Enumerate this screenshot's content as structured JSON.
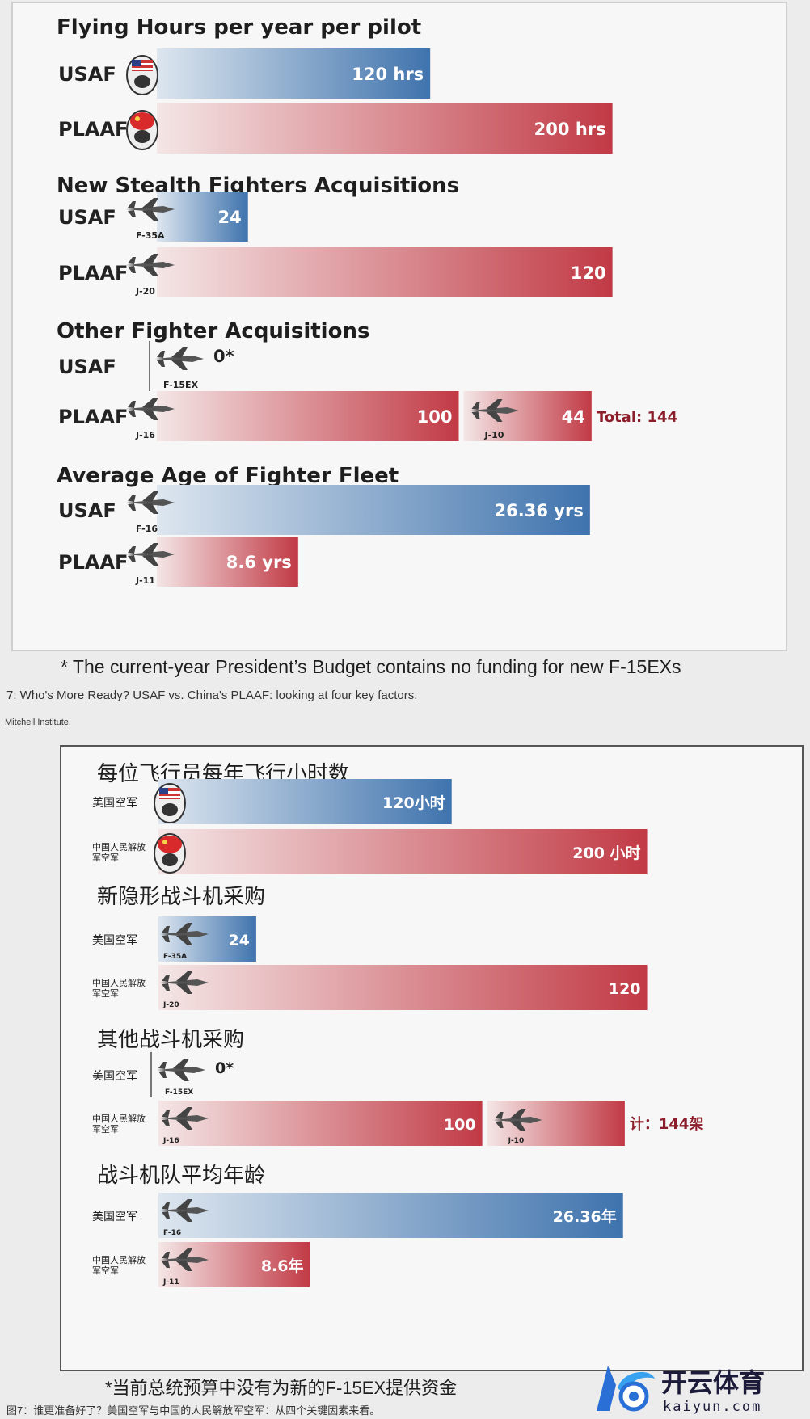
{
  "chart_data": [
    {
      "type": "bar",
      "language": "en",
      "sections": [
        {
          "title": "Flying Hours per year per pilot",
          "max": 220,
          "rows": [
            {
              "label": "USAF",
              "color": "blue",
              "icon": "usa-pilot-helmet-icon",
              "segments": [
                {
                  "value": 120,
                  "text": "120 hrs"
                }
              ]
            },
            {
              "label": "PLAAF",
              "color": "red",
              "icon": "china-pilot-helmet-icon",
              "segments": [
                {
                  "value": 200,
                  "text": "200 hrs"
                }
              ]
            }
          ]
        },
        {
          "title": "New Stealth Fighters Acquisitions",
          "max": 132,
          "rows": [
            {
              "label": "USAF",
              "color": "blue",
              "icon": "fighter-jet-icon",
              "segments": [
                {
                  "value": 24,
                  "text": "24",
                  "plane": "F-35A"
                }
              ]
            },
            {
              "label": "PLAAF",
              "color": "red",
              "icon": "fighter-jet-icon",
              "segments": [
                {
                  "value": 120,
                  "text": "120",
                  "plane": "J-20"
                }
              ]
            }
          ]
        },
        {
          "title": "Other Fighter Acquisitions",
          "max": 166,
          "rows": [
            {
              "label": "USAF",
              "color": "blue",
              "icon": "fighter-jet-icon",
              "segments": [
                {
                  "value": 0,
                  "text": "0*",
                  "plane": "F-15EX"
                }
              ]
            },
            {
              "label": "PLAAF",
              "color": "red",
              "icon": "fighter-jet-icon",
              "segments": [
                {
                  "value": 100,
                  "text": "100",
                  "plane": "J-16"
                },
                {
                  "value": 44,
                  "text": "44",
                  "plane": "J-10"
                }
              ],
              "total": "Total: 144"
            }
          ]
        },
        {
          "title": "Average Age of Fighter Fleet",
          "max": 30.5,
          "rows": [
            {
              "label": "USAF",
              "color": "blue",
              "icon": "fighter-jet-icon",
              "segments": [
                {
                  "value": 26.36,
                  "text": "26.36 yrs",
                  "plane": "F-16"
                }
              ]
            },
            {
              "label": "PLAAF",
              "color": "red",
              "icon": "fighter-jet-icon",
              "segments": [
                {
                  "value": 8.6,
                  "text": "8.6 yrs",
                  "plane": "J-11"
                }
              ]
            }
          ]
        }
      ]
    },
    {
      "type": "bar",
      "language": "zh",
      "sections": [
        {
          "title": "每位飞行员每年飞行小时数",
          "max": 220,
          "rows": [
            {
              "label": "美国空军",
              "color": "blue",
              "icon": "usa-pilot-helmet-icon",
              "segments": [
                {
                  "value": 120,
                  "text": "120小时"
                }
              ]
            },
            {
              "label": "中国人民解放军空军",
              "color": "red",
              "icon": "china-pilot-helmet-icon",
              "segments": [
                {
                  "value": 200,
                  "text": "200 小时"
                }
              ]
            }
          ]
        },
        {
          "title": "新隐形战斗机采购",
          "max": 132,
          "rows": [
            {
              "label": "美国空军",
              "color": "blue",
              "icon": "fighter-jet-icon",
              "segments": [
                {
                  "value": 24,
                  "text": "24",
                  "plane": "F-35A"
                }
              ]
            },
            {
              "label": "中国人民解放军空军",
              "color": "red",
              "icon": "fighter-jet-icon",
              "segments": [
                {
                  "value": 120,
                  "text": "120",
                  "plane": "J-20"
                }
              ]
            }
          ]
        },
        {
          "title": "其他战斗机采购",
          "max": 166,
          "rows": [
            {
              "label": "美国空军",
              "color": "blue",
              "icon": "fighter-jet-icon",
              "segments": [
                {
                  "value": 0,
                  "text": "0*",
                  "plane": "F-15EX"
                }
              ]
            },
            {
              "label": "中国人民解放军空军",
              "color": "red",
              "icon": "fighter-jet-icon",
              "segments": [
                {
                  "value": 100,
                  "text": "100",
                  "plane": "J-16"
                },
                {
                  "value": 44,
                  "text": "",
                  "plane": "J-10"
                }
              ],
              "total": "计：144架"
            }
          ]
        },
        {
          "title": "战斗机队平均年龄",
          "max": 30.5,
          "rows": [
            {
              "label": "美国空军",
              "color": "blue",
              "icon": "fighter-jet-icon",
              "segments": [
                {
                  "value": 26.36,
                  "text": "26.36年",
                  "plane": "F-16"
                }
              ]
            },
            {
              "label": "中国人民解放军空军",
              "color": "red",
              "icon": "fighter-jet-icon",
              "segments": [
                {
                  "value": 8.6,
                  "text": "8.6年",
                  "plane": "J-11"
                }
              ]
            }
          ]
        }
      ]
    }
  ],
  "colors": {
    "blue_start": "#dde6ef",
    "blue_end": "#3f73ad",
    "red_start": "#f4e6e6",
    "red_end": "#c13a45",
    "total": "#8c1d2b"
  },
  "notes": {
    "footnote_en": "* The current-year President’s Budget contains no funding for new F-15EXs",
    "caption_en": "7: Who's More Ready? USAF vs. China's PLAAF: looking at four key factors.",
    "source_en": "Mitchell Institute.",
    "footnote_zh": "*当前总统预算中没有为新的F-15EX提供资金",
    "caption_zh": "图7：谁更准备好了？美国空军与中国的人民解放军空军：从四个关键因素来看。"
  },
  "watermark": {
    "brand": "开云体育",
    "domain": "kaiyun.com",
    "icon": "kaiyun-logo-icon"
  }
}
